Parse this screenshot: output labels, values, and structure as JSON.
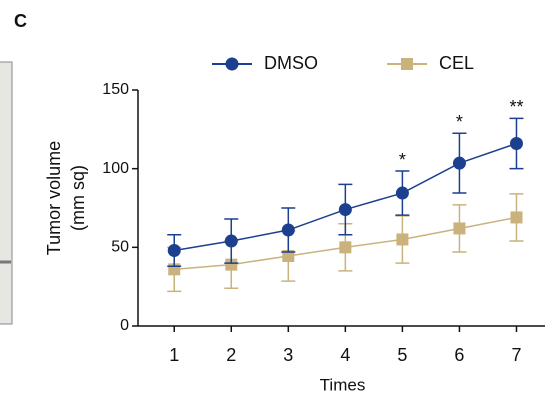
{
  "panel_label": "C",
  "chart_data": {
    "type": "line",
    "ylabel": [
      "Tumor volume",
      "(mm sq)"
    ],
    "xlabel": "Times",
    "x": [
      1,
      2,
      3,
      4,
      5,
      6,
      7
    ],
    "xlim": [
      0.4,
      7.5
    ],
    "xticks": [
      1,
      2,
      3,
      4,
      5,
      6,
      7
    ],
    "ylim": [
      0,
      150
    ],
    "yticks": [
      0,
      50,
      100,
      150
    ],
    "legend": "top",
    "series": [
      {
        "name": "DMSO",
        "color": "#1c3f8f",
        "marker": "circle",
        "values": [
          48,
          54,
          61,
          74,
          84.5,
          103.5,
          116
        ],
        "errors": [
          10,
          14,
          14,
          16,
          14,
          19,
          16
        ]
      },
      {
        "name": "CEL",
        "color": "#c9b27c",
        "marker": "square",
        "values": [
          36,
          39,
          44.5,
          50,
          55,
          62,
          69
        ],
        "errors": [
          14,
          15,
          16,
          15,
          15,
          15,
          15
        ]
      }
    ],
    "annotations": [
      {
        "x": 5,
        "text": "*"
      },
      {
        "x": 6,
        "text": "*"
      },
      {
        "x": 7,
        "text": "**"
      }
    ]
  }
}
